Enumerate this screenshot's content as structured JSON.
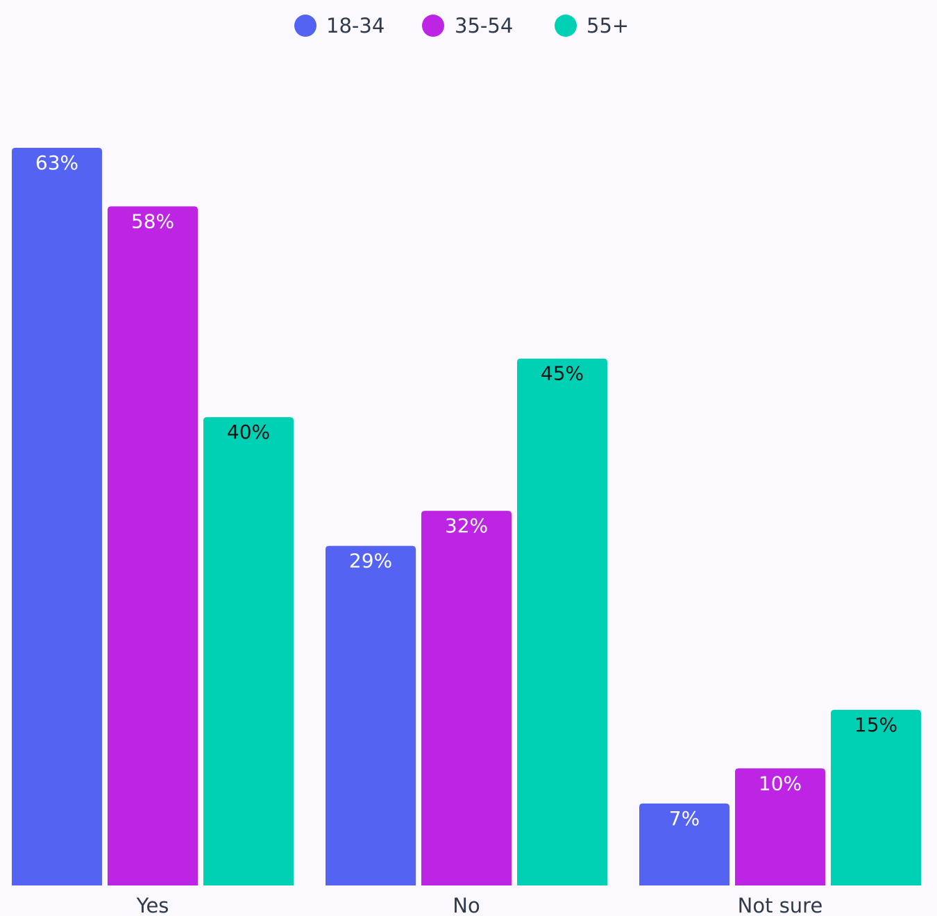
{
  "chart_data": {
    "type": "bar",
    "categories": [
      "Yes",
      "No",
      "Not sure"
    ],
    "series": [
      {
        "name": "18-34",
        "color": "#5563f2",
        "label_color": "#ffffff",
        "values": [
          63,
          29,
          7
        ],
        "labels": [
          "63%",
          "29%",
          "7%"
        ]
      },
      {
        "name": "35-54",
        "color": "#be24e3",
        "label_color": "#ffffff",
        "values": [
          58,
          32,
          10
        ],
        "labels": [
          "58%",
          "32%",
          "10%"
        ]
      },
      {
        "name": "55+",
        "color": "#00d1b5",
        "label_color": "#111111",
        "values": [
          40,
          45,
          15
        ],
        "labels": [
          "40%",
          "45%",
          "15%"
        ]
      }
    ],
    "ylim": [
      0,
      63
    ],
    "legend_position": "top-center",
    "grid": false,
    "background": "#fbf9fe"
  }
}
